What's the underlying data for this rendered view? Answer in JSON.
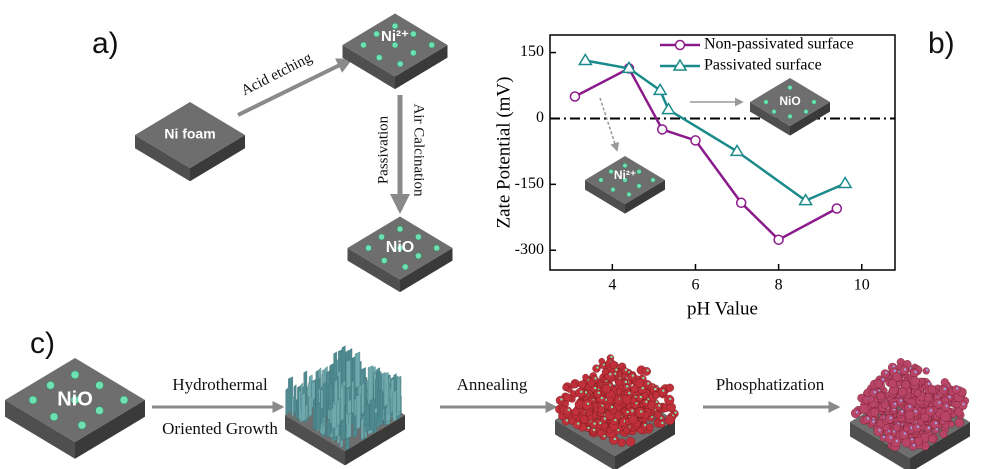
{
  "panel_labels": [
    "a)",
    "b)",
    "c)"
  ],
  "panel_a": {
    "start": "Ni foam",
    "step1": "Acid etching",
    "intermediate": "Ni²⁺",
    "step2_left": "Passivation",
    "step2_right": "Air Calcination",
    "product": "NiO"
  },
  "chart_data": {
    "type": "line",
    "x_label": "pH Value",
    "y_label": "Zate Potential (mV)",
    "xlim": [
      2.5,
      10.8
    ],
    "xticks": [
      4,
      6,
      8,
      10
    ],
    "ylim": [
      -345,
      190
    ],
    "yticks": [
      150,
      0,
      -150,
      -300
    ],
    "hline": 0,
    "legend": "upper right",
    "inset_labels": [
      "NiO",
      "Ni²⁺"
    ],
    "series": [
      {
        "name": "Non-passivated surface",
        "color": "#8b1a8b",
        "marker": "circle",
        "x": [
          3.1,
          4.4,
          5.2,
          6.0,
          7.1,
          8.0,
          9.4
        ],
        "values": [
          50,
          114,
          -25,
          -50,
          -192,
          -276,
          -205
        ]
      },
      {
        "name": "Passivated surface",
        "color": "#1a8a8a",
        "marker": "triangle",
        "x": [
          3.35,
          4.4,
          5.15,
          5.35,
          7.0,
          8.65,
          9.6
        ],
        "values": [
          132,
          114,
          64,
          20,
          -75,
          -187,
          -148
        ]
      }
    ]
  },
  "panel_c": {
    "start": "NiO",
    "step1": [
      "Hydrothermal",
      "Oriented Growth"
    ],
    "step2": "Annealing",
    "step3": "Phosphatization"
  }
}
